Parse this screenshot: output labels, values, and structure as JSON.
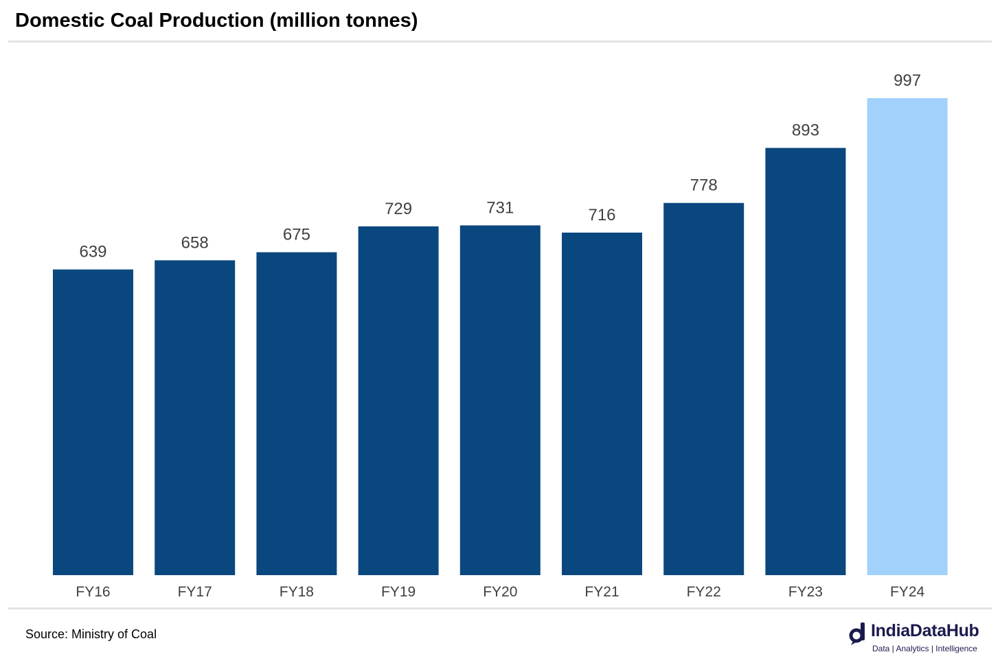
{
  "header": {
    "title": "Domestic Coal Production (million tonnes)"
  },
  "footer": {
    "source": "Source: Ministry of Coal",
    "logo_name": "IndiaDataHub",
    "logo_tagline": "Data | Analytics | Intelligence"
  },
  "colors": {
    "bar_primary": "#0b477f",
    "bar_highlight": "#a2d1fb",
    "label_text": "#404040",
    "rule": "#e3e3e3",
    "logo": "#1b1a4e"
  },
  "chart_data": {
    "type": "bar",
    "title": "Domestic Coal Production (million tonnes)",
    "categories": [
      "FY16",
      "FY17",
      "FY18",
      "FY19",
      "FY20",
      "FY21",
      "FY22",
      "FY23",
      "FY24"
    ],
    "values": [
      639,
      658,
      675,
      729,
      731,
      716,
      778,
      893,
      997
    ],
    "data_labels": [
      "639",
      "658",
      "675",
      "729",
      "731",
      "716",
      "778",
      "893",
      "997"
    ],
    "highlight": [
      "FY24"
    ],
    "ylim": [
      0,
      997
    ],
    "xlabel": "",
    "ylabel": "",
    "grid": false,
    "legend": "none",
    "y_axis_visible": false
  }
}
